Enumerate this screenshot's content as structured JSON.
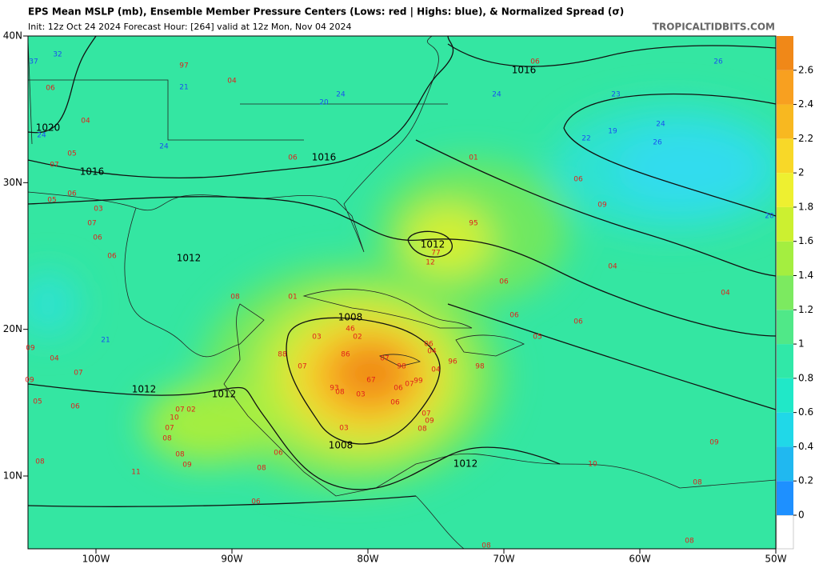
{
  "header": {
    "title": "EPS Mean MSLP (mb), Ensemble Member Pressure Centers (Lows: red | Highs: blue), & Normalized Spread (σ)",
    "subtitle": "Init: 12z Oct 24 2024   Forecast Hour: [264]   valid at 12z Mon, Nov 04 2024",
    "site": "TROPICALTIDBITS.COM"
  },
  "map": {
    "lon_ticks": [
      {
        "value": -100,
        "label": "100W"
      },
      {
        "value": -90,
        "label": "90W"
      },
      {
        "value": -80,
        "label": "80W"
      },
      {
        "value": -70,
        "label": "70W"
      },
      {
        "value": -60,
        "label": "60W"
      },
      {
        "value": -50,
        "label": "50W"
      }
    ],
    "lat_ticks": [
      {
        "value": 40,
        "label": "40N"
      },
      {
        "value": 30,
        "label": "30N"
      },
      {
        "value": 20,
        "label": "20N"
      },
      {
        "value": 10,
        "label": "10N"
      }
    ],
    "contour_labels": [
      1016,
      1020,
      1016,
      1016,
      1012,
      1012,
      1008,
      1008,
      1012,
      1012,
      1012
    ],
    "lows": [
      "97",
      "04",
      "06",
      "04",
      "05",
      "07",
      "06",
      "05",
      "06",
      "03",
      "07",
      "06",
      "06",
      "08",
      "01",
      "01",
      "06",
      "09",
      "95",
      "77",
      "12",
      "06",
      "04",
      "04",
      "06",
      "06",
      "05",
      "03",
      "46",
      "02",
      "86",
      "88",
      "07",
      "04",
      "06",
      "96",
      "98",
      "04",
      "98",
      "07",
      "67",
      "06",
      "07",
      "99",
      "93",
      "08",
      "03",
      "06",
      "07",
      "09",
      "08",
      "03",
      "02",
      "07",
      "10",
      "07",
      "08",
      "08",
      "09",
      "08",
      "06",
      "11",
      "08",
      "07",
      "06",
      "09",
      "05",
      "09",
      "04",
      "09",
      "08",
      "10",
      "08",
      "08",
      "06",
      "06"
    ],
    "highs": [
      "37",
      "32",
      "21",
      "24",
      "20",
      "24",
      "24",
      "24",
      "26",
      "23",
      "19",
      "22",
      "24",
      "26",
      "20",
      "21"
    ]
  },
  "colorbar": {
    "range": [
      0,
      2.8
    ],
    "ticks": [
      0,
      0.2,
      0.4,
      0.6,
      0.8,
      1,
      1.2,
      1.4,
      1.6,
      1.8,
      2,
      2.2,
      2.4,
      2.6
    ],
    "colors": [
      "#1e90ff",
      "#20b8f0",
      "#20d8e8",
      "#20e8c8",
      "#30e8a8",
      "#50e888",
      "#7cea60",
      "#a4ee40",
      "#ccf030",
      "#eef030",
      "#f8d828",
      "#f8b820",
      "#f8a020",
      "#f08818"
    ]
  }
}
